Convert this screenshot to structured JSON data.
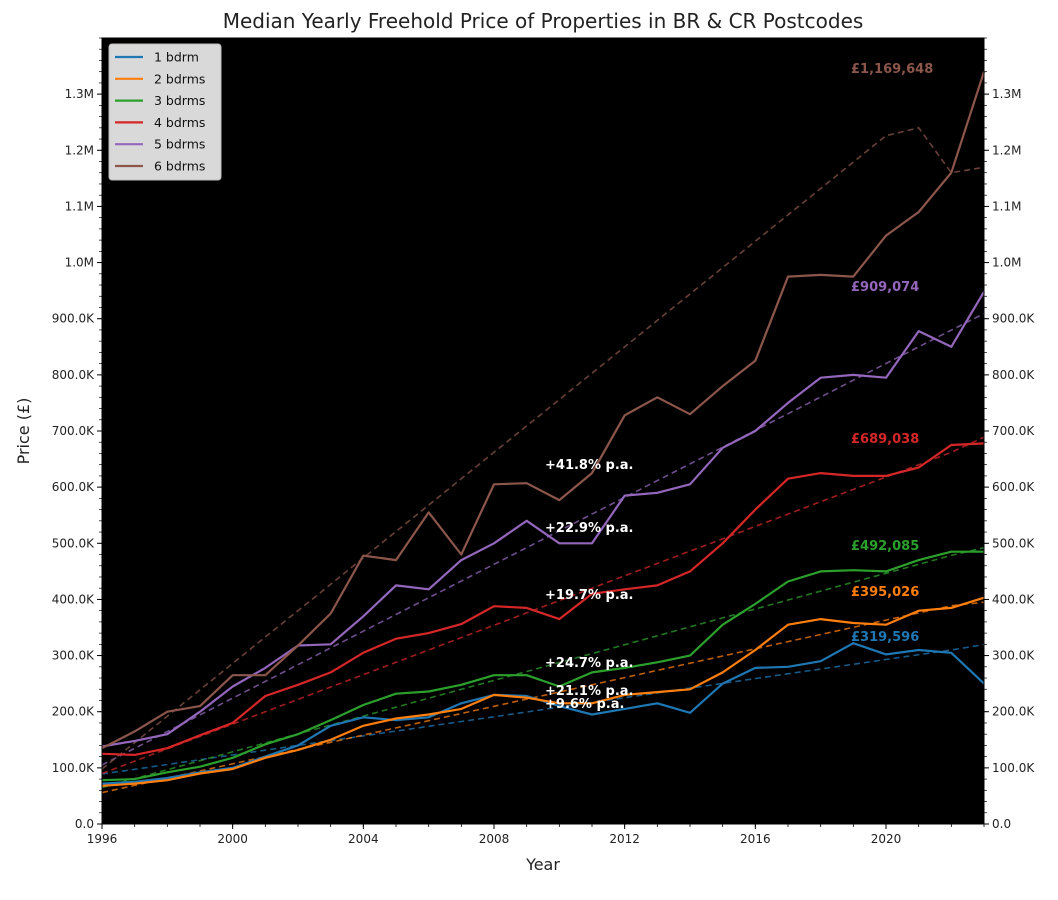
{
  "colors": {
    "background": "#ffffff",
    "plot_background": "#000000",
    "legend_background": "#d9d9d9"
  },
  "chart_data": {
    "type": "line",
    "title": "Median Yearly Freehold Price of Properties in BR & CR Postcodes",
    "xlabel": "Year",
    "ylabel": "Price (£)",
    "xlim": [
      1996,
      2023
    ],
    "ylim": [
      0,
      1400000
    ],
    "x_ticks": [
      1996,
      2000,
      2004,
      2008,
      2012,
      2016,
      2020
    ],
    "y_ticks": [
      0,
      100000,
      200000,
      300000,
      400000,
      500000,
      600000,
      700000,
      800000,
      900000,
      1000000,
      1100000,
      1200000,
      1300000
    ],
    "y_tick_labels": [
      "0.0",
      "100.0K",
      "200.0K",
      "300.0K",
      "400.0K",
      "500.0K",
      "600.0K",
      "700.0K",
      "800.0K",
      "900.0K",
      "1.0M",
      "1.1M",
      "1.2M",
      "1.3M"
    ],
    "grid": false,
    "legend_position": "top-left",
    "secondary_y_axis_mirrored": true,
    "x": [
      1996,
      1997,
      1998,
      1999,
      2000,
      2001,
      2002,
      2003,
      2004,
      2005,
      2006,
      2007,
      2008,
      2009,
      2010,
      2011,
      2012,
      2013,
      2014,
      2015,
      2016,
      2017,
      2018,
      2019,
      2020,
      2021,
      2022,
      2023
    ],
    "series": [
      {
        "name": "1 bdrm",
        "color": "#1f77b4",
        "values": [
          72000,
          75000,
          82000,
          92000,
          100000,
          120000,
          140000,
          175000,
          190000,
          185000,
          190000,
          215000,
          230000,
          228000,
          210000,
          195000,
          205000,
          215000,
          198000,
          250000,
          278000,
          280000,
          290000,
          322000,
          302000,
          310000,
          305000,
          250000
        ],
        "trend": [
          89000,
          97500,
          106000,
          114500,
          123000,
          131500,
          140000,
          148500,
          157000,
          165500,
          174000,
          182500,
          191000,
          199500,
          208000,
          216500,
          225000,
          233500,
          242000,
          250500,
          259000,
          267500,
          276000,
          284500,
          293000,
          301500,
          310000,
          319596
        ],
        "growth_label": "+9.6% p.a.",
        "end_label": "£319,596"
      },
      {
        "name": "2 bdrms",
        "color": "#ff7f0e",
        "values": [
          68000,
          72000,
          78000,
          90000,
          98000,
          118000,
          132000,
          150000,
          175000,
          188000,
          195000,
          205000,
          230000,
          225000,
          215000,
          215000,
          230000,
          235000,
          240000,
          270000,
          310000,
          355000,
          365000,
          358000,
          355000,
          380000,
          385000,
          403000
        ],
        "trend": [
          56000,
          68800,
          81600,
          94400,
          107200,
          120000,
          132800,
          145600,
          158400,
          171200,
          184000,
          196800,
          209600,
          222400,
          235200,
          248000,
          260800,
          273600,
          286400,
          299200,
          312000,
          324800,
          337600,
          350400,
          363200,
          376000,
          388800,
          395026
        ],
        "growth_label": "+21.1% p.a.",
        "end_label": "£395,026"
      },
      {
        "name": "3 bdrms",
        "color": "#2ca02c",
        "values": [
          78000,
          80000,
          92000,
          102000,
          118000,
          142000,
          160000,
          185000,
          212000,
          232000,
          236000,
          248000,
          265000,
          265000,
          245000,
          270000,
          278000,
          288000,
          300000,
          355000,
          392000,
          432000,
          450000,
          452000,
          450000,
          470000,
          485000,
          485000
        ],
        "trend": [
          65000,
          80900,
          96800,
          112700,
          128600,
          144500,
          160400,
          176300,
          192200,
          208100,
          224000,
          239900,
          255800,
          271700,
          287600,
          303500,
          319400,
          335300,
          351200,
          367100,
          383000,
          398900,
          414800,
          430700,
          446600,
          462500,
          478400,
          492085
        ],
        "growth_label": "+24.7% p.a.",
        "end_label": "£492,085"
      },
      {
        "name": "4 bdrms",
        "color": "#d62728",
        "values": [
          125000,
          123000,
          135000,
          158000,
          180000,
          228000,
          248000,
          270000,
          305000,
          330000,
          340000,
          356000,
          388000,
          385000,
          365000,
          410000,
          418000,
          425000,
          450000,
          500000,
          560000,
          615000,
          625000,
          620000,
          620000,
          635000,
          675000,
          678000
        ],
        "trend": [
          90000,
          112000,
          134000,
          156000,
          178000,
          200000,
          222000,
          244000,
          266000,
          288000,
          310000,
          332000,
          354000,
          376000,
          398000,
          420000,
          442000,
          464000,
          486000,
          508000,
          530000,
          552000,
          574000,
          596000,
          618000,
          640000,
          662000,
          689038
        ],
        "growth_label": "+19.7% p.a.",
        "end_label": "£689,038"
      },
      {
        "name": "5 bdrms",
        "color": "#9467bd",
        "values": [
          138000,
          148000,
          160000,
          200000,
          245000,
          278000,
          318000,
          320000,
          370000,
          425000,
          418000,
          470000,
          500000,
          540000,
          500000,
          500000,
          585000,
          590000,
          605000,
          670000,
          700000,
          750000,
          795000,
          800000,
          795000,
          878000,
          850000,
          948000
        ],
        "trend": [
          105000,
          134800,
          164600,
          194400,
          224200,
          254000,
          283800,
          313600,
          343400,
          373200,
          403000,
          432800,
          462600,
          492400,
          522200,
          552000,
          581800,
          611600,
          641400,
          671200,
          701000,
          730800,
          760600,
          790400,
          820200,
          850000,
          879800,
          909074
        ],
        "growth_label": "+22.9% p.a.",
        "end_label": "£909,074"
      },
      {
        "name": "6 bdrms",
        "color": "#8c564b",
        "values": [
          135000,
          165000,
          200000,
          210000,
          265000,
          265000,
          318000,
          375000,
          478000,
          470000,
          555000,
          480000,
          605000,
          607000,
          577000,
          625000,
          728000,
          760000,
          730000,
          780000,
          825000,
          975000,
          978000,
          975000,
          1048000,
          1090000,
          1160000,
          1340000
        ],
        "trend": [
          98000,
          145000,
          192000,
          239000,
          286000,
          333000,
          380000,
          427000,
          474000,
          521000,
          568000,
          615000,
          662000,
          709000,
          756000,
          803000,
          850000,
          897000,
          944000,
          991000,
          1038000,
          1085000,
          1132000,
          1179000,
          1226000,
          1240000,
          1160000,
          1169648
        ],
        "growth_label": "+41.8% p.a.",
        "end_label": "£1,169,648"
      }
    ]
  }
}
